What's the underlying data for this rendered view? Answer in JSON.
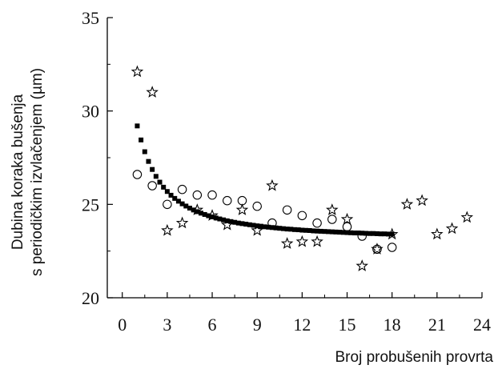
{
  "chart_data": {
    "type": "scatter",
    "xlabel": "Broj probušenih provrta",
    "ylabel_lines": [
      "Dubina koraka bušenja",
      "s periodičkim izvlačenjem (µm)"
    ],
    "xlim": [
      -1,
      24
    ],
    "ylim": [
      20,
      35
    ],
    "x_ticks": [
      0,
      3,
      6,
      9,
      12,
      15,
      18,
      21,
      24
    ],
    "y_ticks": [
      20,
      25,
      30,
      35
    ],
    "grid": false,
    "legend": "none",
    "series": [
      {
        "marker": "circle-open",
        "color": "#000000",
        "x": [
          1,
          2,
          3,
          4,
          5,
          6,
          7,
          8,
          9,
          10,
          11,
          12,
          13,
          14,
          15,
          16,
          17,
          18
        ],
        "y": [
          26.6,
          26.0,
          25.0,
          25.8,
          25.5,
          25.5,
          25.2,
          25.2,
          24.9,
          24.0,
          24.7,
          24.4,
          24.0,
          24.2,
          23.8,
          23.3,
          22.6,
          22.7
        ]
      },
      {
        "marker": "star-open",
        "color": "#000000",
        "x": [
          1,
          2,
          3,
          4,
          5,
          6,
          7,
          8,
          9,
          10,
          11,
          12,
          13,
          14,
          15,
          16,
          17,
          18,
          19,
          20,
          21,
          22,
          23
        ],
        "y": [
          32.1,
          31.0,
          23.6,
          24.0,
          24.7,
          24.4,
          23.9,
          24.7,
          23.6,
          26.0,
          22.9,
          23.0,
          23.0,
          24.7,
          24.2,
          21.7,
          22.6,
          23.4,
          25.0,
          25.2,
          23.4,
          23.7,
          24.3
        ]
      },
      {
        "marker": "square-filled",
        "color": "#000000",
        "x": [
          1.0,
          1.25,
          1.5,
          1.75,
          2.0,
          2.25,
          2.5,
          2.75,
          3.0,
          3.25,
          3.5,
          3.75,
          4.0,
          4.25,
          4.5,
          4.75,
          5.0,
          5.25,
          5.5,
          5.75,
          6.0,
          6.25,
          6.5,
          6.75,
          7.0,
          7.25,
          7.5,
          7.75,
          8.0,
          8.25,
          8.5,
          8.75,
          9.0,
          9.25,
          9.5,
          9.75,
          10.0,
          10.25,
          10.5,
          10.75,
          11.0,
          11.25,
          11.5,
          11.75,
          12.0,
          12.25,
          12.5,
          12.75,
          13.0,
          13.25,
          13.5,
          13.75,
          14.0,
          14.25,
          14.5,
          14.75,
          15.0,
          15.25,
          15.5,
          15.75,
          16.0,
          16.25,
          16.5,
          16.75,
          17.0,
          17.25,
          17.5,
          17.75,
          18.0
        ],
        "y": [
          29.2,
          28.45,
          27.82,
          27.3,
          26.87,
          26.5,
          26.19,
          25.92,
          25.69,
          25.49,
          25.32,
          25.17,
          25.03,
          24.91,
          24.8,
          24.7,
          24.61,
          24.53,
          24.46,
          24.39,
          24.33,
          24.27,
          24.22,
          24.17,
          24.12,
          24.08,
          24.04,
          24.0,
          23.97,
          23.94,
          23.91,
          23.88,
          23.85,
          23.83,
          23.8,
          23.78,
          23.76,
          23.74,
          23.72,
          23.7,
          23.68,
          23.67,
          23.65,
          23.64,
          23.62,
          23.61,
          23.6,
          23.58,
          23.57,
          23.56,
          23.55,
          23.54,
          23.53,
          23.52,
          23.51,
          23.5,
          23.49,
          23.48,
          23.47,
          23.47,
          23.46,
          23.45,
          23.44,
          23.44,
          23.43,
          23.42,
          23.42,
          23.41,
          23.41
        ]
      }
    ]
  }
}
